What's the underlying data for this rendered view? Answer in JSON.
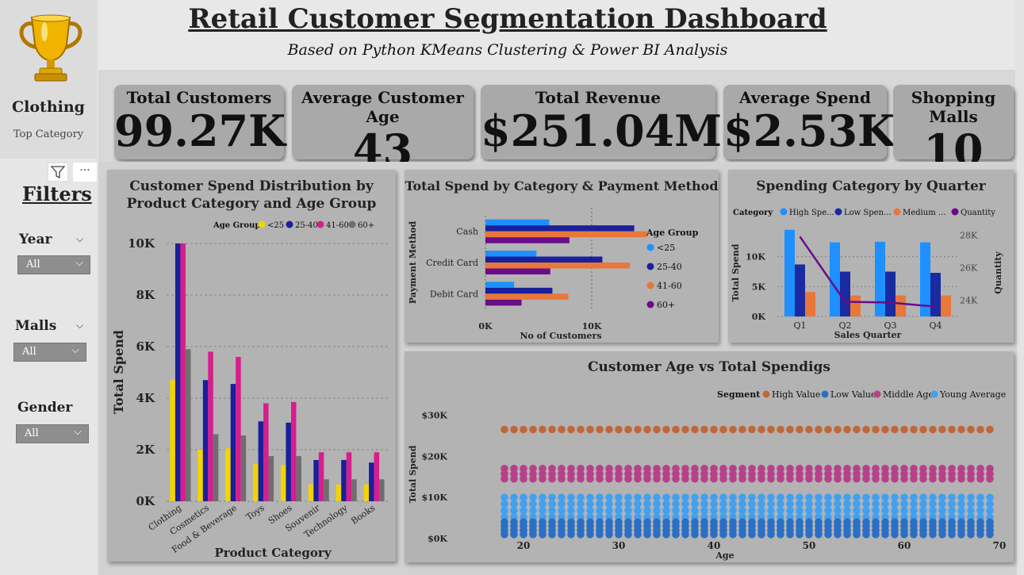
{
  "header": {
    "title": "Retail Customer Segmentation Dashboard",
    "subtitle": "Based on Python KMeans Clustering & Power BI Analysis"
  },
  "sidebar": {
    "top_category_value": "Clothing",
    "top_category_label": "Top Category",
    "trophy_icon": "trophy-icon",
    "filters_title": "Filters",
    "filters": [
      {
        "label": "Year",
        "value": "All"
      },
      {
        "label": "Malls",
        "value": "All"
      },
      {
        "label": "Gender",
        "value": "All"
      }
    ],
    "more_label": "···"
  },
  "kpis": [
    {
      "label": "Total Customers",
      "value": "99.27K"
    },
    {
      "label": "Average Customer Age",
      "value": "43"
    },
    {
      "label": "Total Revenue",
      "value": "$251.04M"
    },
    {
      "label": "Average Spend",
      "value": "$2.53K"
    },
    {
      "label": "Shopping Malls",
      "value": "10"
    }
  ],
  "colors": {
    "lt25": "#f2d400",
    "a25_40": "#1a1f9c",
    "a41_60": "#d61e8c",
    "a60p": "#6e6e6e",
    "pay_lt25": "#1e90ff",
    "pay_25_40": "#1a1f9c",
    "pay_41_60": "#e8773a",
    "pay_60p": "#6a0c8a",
    "q_high": "#1e90ff",
    "q_low": "#1a2aa0",
    "q_medium": "#e8773a",
    "q_quantity": "#6a0c8a",
    "seg_high": "#c0673a",
    "seg_low": "#2a6fc4",
    "seg_middle": "#b8408a",
    "seg_young": "#42a0f0"
  },
  "chart_data": [
    {
      "id": "spend-dist",
      "type": "bar",
      "title": "Customer Spend Distribution by Product Category and Age Group",
      "legend_title": "Age Group",
      "xlabel": "Product Category",
      "ylabel": "Total Spend",
      "ylim": [
        0,
        10000
      ],
      "yticks": [
        "0K",
        "2K",
        "4K",
        "6K",
        "8K",
        "10K"
      ],
      "categories": [
        "Clothing",
        "Cosmetics",
        "Food & Beverage",
        "Toys",
        "Shoes",
        "Souvenir",
        "Technology",
        "Books"
      ],
      "series": [
        {
          "name": "<25",
          "values": [
            4700,
            2000,
            2050,
            1450,
            1400,
            650,
            650,
            650
          ]
        },
        {
          "name": "25-40",
          "values": [
            10000,
            4700,
            4550,
            3100,
            3050,
            1600,
            1600,
            1500
          ]
        },
        {
          "name": "41-60",
          "values": [
            10000,
            5800,
            5600,
            3800,
            3850,
            1900,
            1900,
            1900
          ]
        },
        {
          "name": "60+",
          "values": [
            5900,
            2600,
            2550,
            1750,
            1750,
            850,
            850,
            850
          ]
        }
      ]
    },
    {
      "id": "payment",
      "type": "bar",
      "orientation": "horizontal",
      "title": "Total Spend by Category & Payment Method",
      "legend_title": "Age Group",
      "xlabel": "No of Customers",
      "ylabel": "Payment Method",
      "xlim": [
        0,
        15000
      ],
      "xticks": [
        "0K",
        "10K"
      ],
      "categories": [
        "Cash",
        "Credit Card",
        "Debit Card"
      ],
      "series": [
        {
          "name": "<25",
          "values": [
            6000,
            4800,
            2700
          ]
        },
        {
          "name": "25-40",
          "values": [
            14000,
            11000,
            6300
          ]
        },
        {
          "name": "41-60",
          "values": [
            15200,
            13600,
            7800
          ]
        },
        {
          "name": "60+",
          "values": [
            7900,
            6100,
            3400
          ]
        }
      ]
    },
    {
      "id": "quarter",
      "type": "bar",
      "title": "Spending Category by Quarter",
      "legend_title": "Category",
      "xlabel": "Sales Quarter",
      "ylabel": "Total Spend",
      "y2label": "Quantity",
      "ylim": [
        0,
        15000
      ],
      "yticks": [
        "0K",
        "5K",
        "10K"
      ],
      "y2lim": [
        23000,
        28500
      ],
      "y2ticks": [
        "24K",
        "26K",
        "28K"
      ],
      "categories": [
        "Q1",
        "Q2",
        "Q3",
        "Q4"
      ],
      "series": [
        {
          "name": "High Spe...",
          "values": [
            14500,
            12400,
            12500,
            12400
          ]
        },
        {
          "name": "Low Spen...",
          "values": [
            8700,
            7500,
            7500,
            7300
          ]
        },
        {
          "name": "Medium ...",
          "values": [
            4100,
            3500,
            3500,
            3500
          ]
        }
      ],
      "line_series": {
        "name": "Quantity",
        "values": [
          27900,
          23900,
          23850,
          23600
        ]
      }
    },
    {
      "id": "age-scatter",
      "type": "scatter",
      "title": "Customer Age vs Total Spendigs",
      "legend_title": "Segment",
      "xlabel": "Age",
      "ylabel": "Total Spend",
      "xlim": [
        15,
        70
      ],
      "xticks": [
        "20",
        "30",
        "40",
        "50",
        "60",
        "70"
      ],
      "ylim": [
        0,
        32000
      ],
      "yticks": [
        "$0K",
        "$10K",
        "$20K",
        "$30K"
      ],
      "age_range": [
        18,
        69
      ],
      "series": [
        {
          "name": "High Value",
          "y_levels": [
            26500
          ]
        },
        {
          "name": "Low Value",
          "y_levels": [
            1000,
            2000,
            3000,
            4000
          ]
        },
        {
          "name": "Middle Age",
          "y_levels": [
            14500,
            15700,
            17000
          ]
        },
        {
          "name": "Young Average",
          "y_levels": [
            5200,
            6800,
            8400,
            10000
          ]
        }
      ]
    }
  ]
}
